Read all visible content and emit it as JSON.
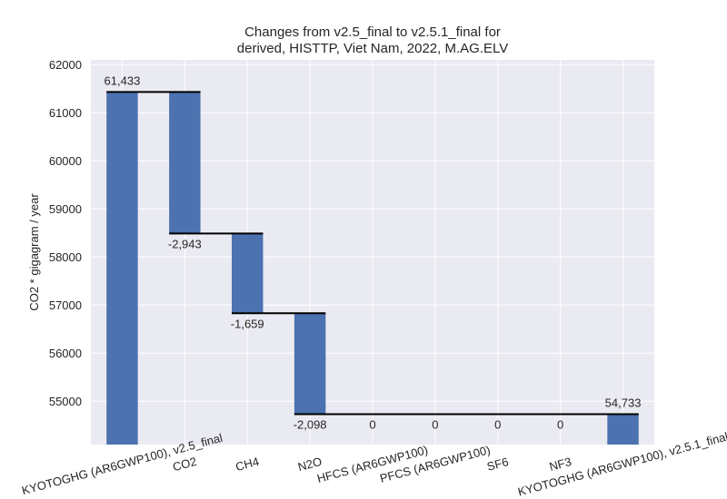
{
  "chart_data": {
    "type": "waterfall",
    "title_lines": [
      "Changes from v2.5_final to v2.5.1_final for",
      "derived, HISTTP, Viet Nam, 2022, M.AG.ELV"
    ],
    "xlabel": "",
    "ylabel": "CO2 * gigagram / year",
    "ylim": [
      54100,
      62100
    ],
    "yticks": [
      55000,
      56000,
      57000,
      58000,
      59000,
      60000,
      61000,
      62000
    ],
    "ytick_labels": [
      "55000",
      "56000",
      "57000",
      "58000",
      "59000",
      "60000",
      "61000",
      "62000"
    ],
    "categories": [
      "KYOTOGHG (AR6GWP100), v2.5_final",
      "CO2",
      "CH4",
      "N2O",
      "HFCS (AR6GWP100)",
      "PFCS (AR6GWP100)",
      "SF6",
      "NF3",
      "KYOTOGHG (AR6GWP100), v2.5.1_final"
    ],
    "values": [
      61433,
      -2943,
      -1659,
      -2098,
      0,
      0,
      0,
      0,
      54733
    ],
    "data_labels": [
      "61,433",
      "-2,943",
      "-1,659",
      "-2,098",
      "0",
      "0",
      "0",
      "0",
      "54,733"
    ],
    "bar_color": "#4c72b0",
    "background_color": "#eaeaf2",
    "grid": true,
    "legend": "none"
  }
}
